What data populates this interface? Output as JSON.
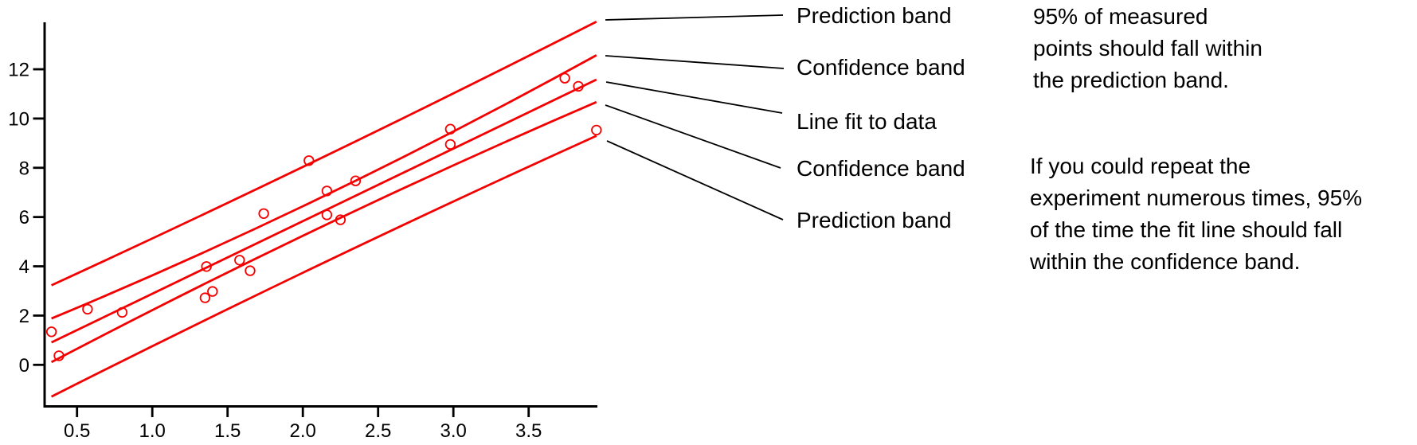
{
  "figure": {
    "background": "#ffffff",
    "accent_red": "#f50000",
    "axis_color": "#000000",
    "callout_line_color": "#000000"
  },
  "chart_data": {
    "type": "scatter",
    "title": "",
    "xlabel": "",
    "ylabel": "",
    "grid": false,
    "legend_position": "callout-labels-right",
    "xlim": [
      0.28,
      3.98
    ],
    "ylim": [
      -1.73,
      13.95
    ],
    "x_ticks": [
      {
        "value": 0.5,
        "label": "0.5"
      },
      {
        "value": 1.0,
        "label": "1.0"
      },
      {
        "value": 1.5,
        "label": "1.5"
      },
      {
        "value": 2.0,
        "label": "2.0"
      },
      {
        "value": 2.5,
        "label": "2.5"
      },
      {
        "value": 3.0,
        "label": "3.0"
      },
      {
        "value": 3.5,
        "label": "3.5"
      }
    ],
    "y_ticks": [
      {
        "value": 0,
        "label": "0"
      },
      {
        "value": 2,
        "label": "2"
      },
      {
        "value": 4,
        "label": "4"
      },
      {
        "value": 6,
        "label": "6"
      },
      {
        "value": 8,
        "label": "8"
      },
      {
        "value": 10,
        "label": "10"
      },
      {
        "value": 12,
        "label": "12"
      }
    ],
    "points": [
      [
        0.33,
        1.34
      ],
      [
        0.38,
        0.37
      ],
      [
        0.57,
        2.26
      ],
      [
        0.8,
        2.13
      ],
      [
        1.35,
        2.72
      ],
      [
        1.4,
        2.98
      ],
      [
        1.36,
        3.99
      ],
      [
        1.58,
        4.25
      ],
      [
        1.65,
        3.82
      ],
      [
        1.74,
        6.14
      ],
      [
        2.04,
        8.29
      ],
      [
        2.16,
        6.09
      ],
      [
        2.25,
        5.89
      ],
      [
        2.16,
        7.06
      ],
      [
        2.35,
        7.47
      ],
      [
        2.98,
        9.57
      ],
      [
        2.98,
        8.95
      ],
      [
        3.74,
        11.64
      ],
      [
        3.83,
        11.31
      ],
      [
        3.95,
        9.53
      ]
    ],
    "series": [
      {
        "name": "prediction-band-upper",
        "role": "Prediction band",
        "x0": 0.33,
        "y0": 3.23,
        "xm": 2.14,
        "ym": 8.45,
        "x1": 3.95,
        "y1": 13.93
      },
      {
        "name": "confidence-band-upper",
        "role": "Confidence band",
        "x0": 0.33,
        "y0": 1.88,
        "xm": 2.14,
        "ym": 6.85,
        "x1": 3.95,
        "y1": 12.57
      },
      {
        "name": "line-fit",
        "role": "Line fit to data",
        "x0": 0.33,
        "y0": 0.91,
        "xm": 2.14,
        "ym": 6.25,
        "x1": 3.95,
        "y1": 11.58
      },
      {
        "name": "confidence-band-lower",
        "role": "Confidence band",
        "x0": 0.33,
        "y0": 0.11,
        "xm": 2.14,
        "ym": 5.65,
        "x1": 3.95,
        "y1": 10.67
      },
      {
        "name": "prediction-band-lower",
        "role": "Prediction band",
        "x0": 0.33,
        "y0": -1.29,
        "xm": 2.14,
        "ym": 4.15,
        "x1": 3.95,
        "y1": 9.3
      }
    ]
  },
  "callouts": {
    "items": [
      {
        "label": "Prediction band"
      },
      {
        "label": "Confidence band"
      },
      {
        "label": "Line fit to data"
      },
      {
        "label": "Confidence band"
      },
      {
        "label": "Prediction band"
      }
    ]
  },
  "annotations": {
    "prediction_note": {
      "lines": [
        "95% of measured",
        "points should fall within",
        "the prediction band."
      ]
    },
    "confidence_note": {
      "lines": [
        "If you could repeat the",
        "experiment numerous times, 95%",
        "of the time the fit line should fall",
        "within the confidence band."
      ]
    }
  }
}
